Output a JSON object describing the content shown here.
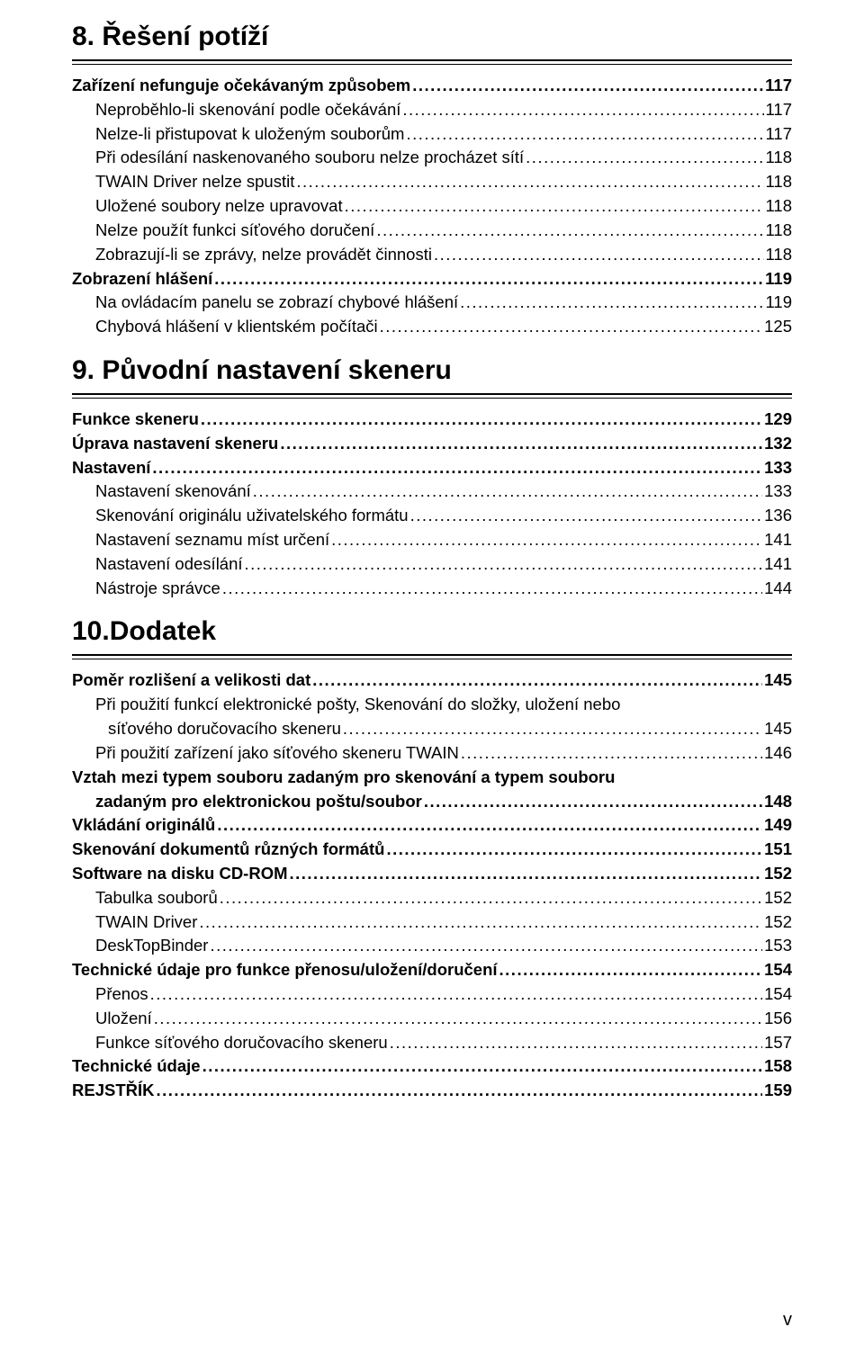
{
  "footer": "v",
  "sections": [
    {
      "title": "8. Řešení potíží",
      "entries": [
        {
          "label": "Zařízení nefunguje očekávaným způsobem",
          "page": "117",
          "bold": true,
          "indent": 0
        },
        {
          "label": "Neproběhlo-li skenování podle očekávání",
          "page": "117",
          "bold": false,
          "indent": 1
        },
        {
          "label": "Nelze-li přistupovat k uloženým souborům",
          "page": "117",
          "bold": false,
          "indent": 1
        },
        {
          "label": "Při odesílání naskenovaného souboru nelze procházet sítí",
          "page": "118",
          "bold": false,
          "indent": 1
        },
        {
          "label": "TWAIN Driver nelze spustit",
          "page": "118",
          "bold": false,
          "indent": 1
        },
        {
          "label": "Uložené soubory nelze upravovat",
          "page": "118",
          "bold": false,
          "indent": 1
        },
        {
          "label": "Nelze použít funkci síťového doručení",
          "page": "118",
          "bold": false,
          "indent": 1
        },
        {
          "label": "Zobrazují-li se zprávy, nelze provádět činnosti",
          "page": "118",
          "bold": false,
          "indent": 1
        },
        {
          "label": "Zobrazení hlášení",
          "page": "119",
          "bold": true,
          "indent": 0
        },
        {
          "label": "Na ovládacím panelu se zobrazí chybové hlášení",
          "page": "119",
          "bold": false,
          "indent": 1
        },
        {
          "label": "Chybová hlášení v klientském počítači",
          "page": "125",
          "bold": false,
          "indent": 1
        }
      ]
    },
    {
      "title": "9. Původní nastavení skeneru",
      "entries": [
        {
          "label": "Funkce skeneru",
          "page": "129",
          "bold": true,
          "indent": 0
        },
        {
          "label": "Úprava nastavení skeneru",
          "page": "132",
          "bold": true,
          "indent": 0
        },
        {
          "label": "Nastavení",
          "page": "133",
          "bold": true,
          "indent": 0
        },
        {
          "label": "Nastavení skenování",
          "page": "133",
          "bold": false,
          "indent": 1
        },
        {
          "label": "Skenování originálu uživatelského formátu",
          "page": "136",
          "bold": false,
          "indent": 1
        },
        {
          "label": "Nastavení seznamu míst určení",
          "page": "141",
          "bold": false,
          "indent": 1
        },
        {
          "label": "Nastavení odesílání",
          "page": "141",
          "bold": false,
          "indent": 1
        },
        {
          "label": "Nástroje správce",
          "page": "144",
          "bold": false,
          "indent": 1
        }
      ]
    },
    {
      "title": "10.Dodatek",
      "entries": [
        {
          "label": "Poměr rozlišení a velikosti dat",
          "page": "145",
          "bold": true,
          "indent": 0
        },
        {
          "label": "Při použití funkcí elektronické pošty, Skenování do složky, uložení nebo",
          "page": "",
          "bold": false,
          "indent": 1,
          "nodots": true
        },
        {
          "label": "síťového doručovacího skeneru",
          "page": "145",
          "bold": false,
          "indent": 2
        },
        {
          "label": "Při použití zařízení jako síťového skeneru TWAIN",
          "page": "146",
          "bold": false,
          "indent": 1
        },
        {
          "label": "Vztah mezi typem souboru zadaným pro skenování a typem souboru",
          "page": "",
          "bold": true,
          "indent": 0,
          "nodots": true
        },
        {
          "label": "zadaným pro elektronickou poštu/soubor",
          "page": "148",
          "bold": true,
          "indent": 1
        },
        {
          "label": "Vkládání originálů",
          "page": "149",
          "bold": true,
          "indent": 0
        },
        {
          "label": "Skenování dokumentů různých formátů",
          "page": "151",
          "bold": true,
          "indent": 0
        },
        {
          "label": "Software na disku CD-ROM",
          "page": "152",
          "bold": true,
          "indent": 0
        },
        {
          "label": "Tabulka souborů",
          "page": "152",
          "bold": false,
          "indent": 1
        },
        {
          "label": "TWAIN Driver",
          "page": "152",
          "bold": false,
          "indent": 1
        },
        {
          "label": "DeskTopBinder",
          "page": "153",
          "bold": false,
          "indent": 1
        },
        {
          "label": "Technické údaje pro funkce přenosu/uložení/doručení",
          "page": "154",
          "bold": true,
          "indent": 0
        },
        {
          "label": "Přenos",
          "page": "154",
          "bold": false,
          "indent": 1
        },
        {
          "label": "Uložení",
          "page": "156",
          "bold": false,
          "indent": 1
        },
        {
          "label": "Funkce síťového doručovacího skeneru",
          "page": "157",
          "bold": false,
          "indent": 1
        },
        {
          "label": "Technické údaje",
          "page": "158",
          "bold": true,
          "indent": 0
        },
        {
          "label": "REJSTŘÍK",
          "page": " 159",
          "bold": true,
          "indent": 0
        }
      ]
    }
  ]
}
